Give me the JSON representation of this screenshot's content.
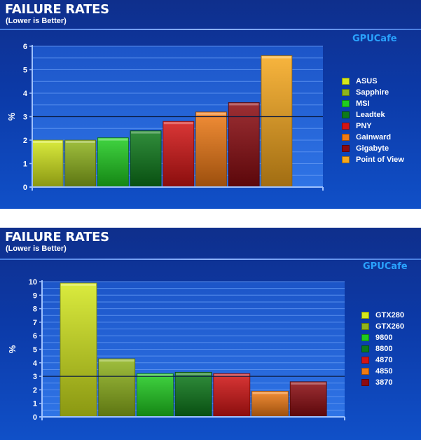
{
  "chart_data": [
    {
      "type": "bar",
      "title": "FAILURE RATES",
      "subtitle": "(Lower is Better)",
      "watermark": "GPUCafe",
      "ylabel": "%",
      "xlabel": "",
      "ylim": [
        0,
        6
      ],
      "yticks": [
        "0",
        "1",
        "2",
        "3",
        "4",
        "5",
        "6"
      ],
      "reference_line": 3,
      "grid": true,
      "legend_position": "right",
      "categories": [
        "ASUS",
        "Sapphire",
        "MSI",
        "Leadtek",
        "PNY",
        "Gainward",
        "Gigabyte",
        "Point of View"
      ],
      "values": [
        2.0,
        2.0,
        2.1,
        2.4,
        2.8,
        3.2,
        3.6,
        5.6
      ],
      "colors": [
        "#d4e81c",
        "#8fb41c",
        "#1fcc1f",
        "#0d7a1a",
        "#d41414",
        "#f07a14",
        "#8c0a10",
        "#f7a81c"
      ]
    },
    {
      "type": "bar",
      "title": "FAILURE RATES",
      "subtitle": "(Lower is Better)",
      "watermark": "GPUCafe",
      "ylabel": "%",
      "xlabel": "",
      "ylim": [
        0,
        10
      ],
      "yticks": [
        "0",
        "1",
        "2",
        "3",
        "4",
        "5",
        "6",
        "7",
        "8",
        "9",
        "10"
      ],
      "reference_line": 3,
      "grid": true,
      "legend_position": "right",
      "categories": [
        "GTX280",
        "GTX260",
        "9800",
        "8800",
        "4870",
        "4850",
        "3870"
      ],
      "values": [
        9.9,
        4.3,
        3.2,
        3.3,
        3.2,
        1.9,
        2.6
      ],
      "colors": [
        "#d4e81c",
        "#8fb41c",
        "#1fcc1f",
        "#0d7a1a",
        "#d41414",
        "#f07a14",
        "#8c0a10"
      ]
    }
  ]
}
